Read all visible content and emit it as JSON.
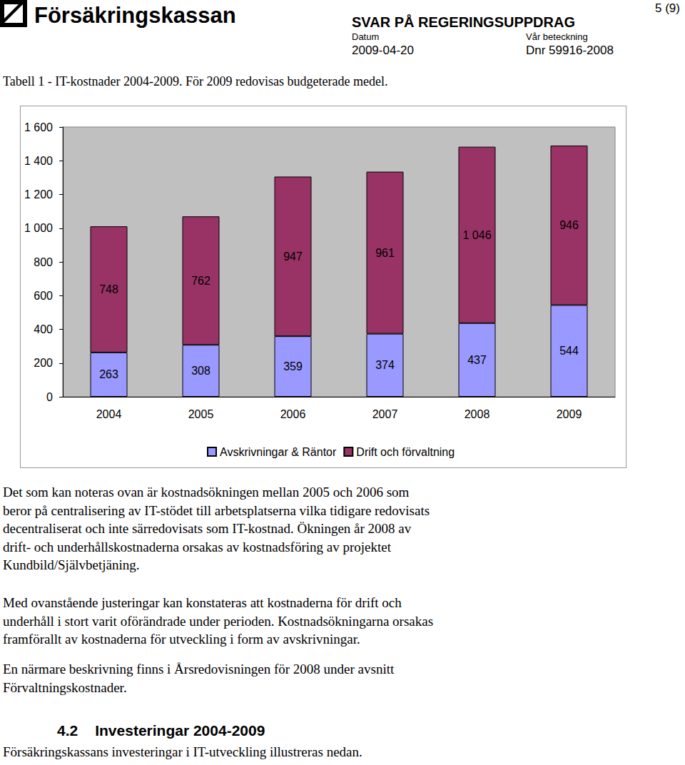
{
  "header": {
    "logo": "Försäkringskassan",
    "title": "SVAR PÅ REGERINGSUPPDRAG",
    "date_label": "Datum",
    "date": "2009-04-20",
    "ref_label": "Vår beteckning",
    "ref": "Dnr 59916-2008",
    "page": "5 (9)"
  },
  "caption": "Tabell 1 - IT-kostnader 2004-2009. För 2009 redovisas budgeterade medel.",
  "chart_data": {
    "type": "bar",
    "stacked": true,
    "categories": [
      "2004",
      "2005",
      "2006",
      "2007",
      "2008",
      "2009"
    ],
    "series": [
      {
        "name": "Avskrivningar & Räntor",
        "color": "#9999ff",
        "values": [
          263,
          308,
          359,
          374,
          437,
          544
        ]
      },
      {
        "name": "Drift och förvaltning",
        "color": "#993366",
        "values": [
          748,
          762,
          947,
          961,
          1046,
          946
        ],
        "value_labels": [
          "748",
          "762",
          "947",
          "961",
          "1 046",
          "946"
        ]
      }
    ],
    "ylim": [
      0,
      1600
    ],
    "yticks": [
      0,
      200,
      400,
      600,
      800,
      {
        "value": 1000,
        "label": "1 000"
      },
      {
        "value": 1200,
        "label": "1 200"
      },
      {
        "value": 1400,
        "label": "1 400"
      },
      {
        "value": 1600,
        "label": "1 600"
      }
    ],
    "grid": false,
    "legend": "bottom",
    "data_labels": true
  },
  "paragraphs": [
    [
      "Det som kan noteras ovan är kostnadsökningen mellan 2005 och 2006 som",
      "beror på centralisering av IT-stödet till arbetsplatserna vilka tidigare redovisats",
      "decentraliserat och inte särredovisats som IT-kostnad. Ökningen år 2008 av",
      "drift- och underhållskostnaderna orsakas av kostnadsföring av projektet",
      "Kundbild/Självbetjäning."
    ],
    [
      "Med ovanstående justeringar kan konstateras att kostnaderna för drift och",
      "underhåll i stort varit oförändrade under perioden. Kostnadsökningarna orsakas",
      "framförallt av kostnaderna för utveckling i form av avskrivningar."
    ],
    [
      "En närmare beskrivning finns i Årsredovisningen för 2008 under avsnitt",
      "Förvaltningskostnader."
    ]
  ],
  "section": {
    "number": "4.2",
    "title": "Investeringar 2004-2009"
  },
  "text": "Försäkringskassans investeringar i IT-utveckling illustreras nedan."
}
